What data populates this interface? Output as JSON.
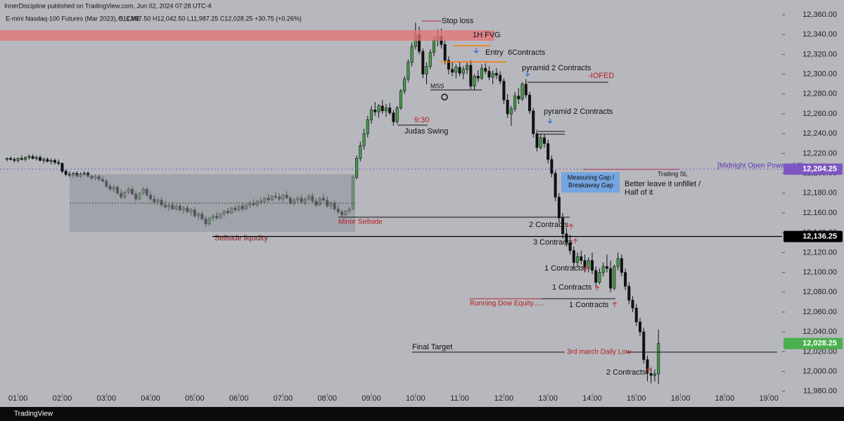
{
  "chart_data": {
    "type": "candlestick",
    "header": {
      "publisher": "InnerDiscipline published on TradingView.com, Jun 02, 2024 07:28 UTC-4",
      "symbol": "E-mini Nasdaq-100 Futures (Mar 2023), 5, CME",
      "ohlc": "O11,997.50  H12,042.50  L11,987.25  C12,028.25  +30.75 (+0.26%)",
      "brand": "TradingView"
    },
    "up_color": "#43a047",
    "down_color": "#111111",
    "xlim": [
      -1.9,
      210.6
    ],
    "xticks": [
      {
        "value": 3,
        "label": "01:00"
      },
      {
        "value": 15,
        "label": "02:00"
      },
      {
        "value": 27,
        "label": "03:00"
      },
      {
        "value": 39,
        "label": "04:00"
      },
      {
        "value": 51,
        "label": "05:00"
      },
      {
        "value": 63,
        "label": "06:00"
      },
      {
        "value": 75,
        "label": "07:00"
      },
      {
        "value": 87,
        "label": "08:00"
      },
      {
        "value": 99,
        "label": "09:00"
      },
      {
        "value": 111,
        "label": "10:00"
      },
      {
        "value": 123,
        "label": "11:00"
      },
      {
        "value": 135,
        "label": "12:00"
      },
      {
        "value": 147,
        "label": "13:00"
      },
      {
        "value": 159,
        "label": "14:00"
      },
      {
        "value": 171,
        "label": "15:00"
      },
      {
        "value": 183,
        "label": "16:00"
      },
      {
        "value": 195,
        "label": "18:00"
      },
      {
        "value": 207,
        "label": "19:00"
      }
    ],
    "ylim": [
      11977.7,
      12374.9
    ],
    "yticks": [
      {
        "value": 11980,
        "label": "11,980.00"
      },
      {
        "value": 12000,
        "label": "12,000.00"
      },
      {
        "value": 12020,
        "label": "12,020.00"
      },
      {
        "value": 12040,
        "label": "12,040.00"
      },
      {
        "value": 12060,
        "label": "12,060.00"
      },
      {
        "value": 12080,
        "label": "12,080.00"
      },
      {
        "value": 12100,
        "label": "12,100.00"
      },
      {
        "value": 12120,
        "label": "12,120.00"
      },
      {
        "value": 12140,
        "label": "12,140.00"
      },
      {
        "value": 12160,
        "label": "12,160.00"
      },
      {
        "value": 12180,
        "label": "12,180.00"
      },
      {
        "value": 12200,
        "label": "12,200.00"
      },
      {
        "value": 12220,
        "label": "12,220.00"
      },
      {
        "value": 12240,
        "label": "12,240.00"
      },
      {
        "value": 12260,
        "label": "12,260.00"
      },
      {
        "value": 12280,
        "label": "12,280.00"
      },
      {
        "value": 12300,
        "label": "12,300.00"
      },
      {
        "value": 12320,
        "label": "12,320.00"
      },
      {
        "value": 12340,
        "label": "12,340.00"
      },
      {
        "value": 12360,
        "label": "12,360.00"
      }
    ],
    "price_levels": [
      {
        "value": 12204.25,
        "label": "12,204.25",
        "color": "#7e57c2"
      },
      {
        "value": 12136.25,
        "label": "12,136.25",
        "color": "#000000"
      },
      {
        "value": 12028.25,
        "label": "12,028.25",
        "color": "#4caf50"
      }
    ],
    "annotations": [
      "Stop loss",
      "1H FVG",
      "Entry",
      "6Contracts",
      "pyramid  2 Contracts",
      "-IOFED",
      "MSS",
      "9:30",
      "Judas Swing",
      "pyramid  2 Contracts",
      "Trailing SL",
      "[Midnight Open Power of 3]",
      "Measuring Gap /",
      "Breakaway Gap",
      "Better leave it unfillet /",
      "Half of it",
      "Sellside liqudity",
      "Minor Sellside",
      "2 Contracts",
      "3 Contracts",
      "1 Contracts",
      "1 Contracts",
      "Running Dow Equity......",
      "1 Contracts",
      "Final Target",
      "3rd march Daily Low",
      "2 Contracts"
    ],
    "candles": [
      [
        12214,
        12216,
        12212,
        12215
      ],
      [
        12215,
        12217,
        12213,
        12214
      ],
      [
        12214,
        12216,
        12211,
        12213
      ],
      [
        12213,
        12216,
        12211,
        12215
      ],
      [
        12215,
        12218,
        12213,
        12214
      ],
      [
        12214,
        12217,
        12212,
        12216
      ],
      [
        12216,
        12219,
        12214,
        12217
      ],
      [
        12217,
        12219,
        12214,
        12215
      ],
      [
        12215,
        12218,
        12213,
        12216
      ],
      [
        12216,
        12218,
        12212,
        12213
      ],
      [
        12213,
        12216,
        12210,
        12214
      ],
      [
        12214,
        12216,
        12211,
        12212
      ],
      [
        12212,
        12215,
        12209,
        12213
      ],
      [
        12213,
        12215,
        12209,
        12211
      ],
      [
        12211,
        12214,
        12208,
        12210
      ],
      [
        12210,
        12211,
        12200,
        12202
      ],
      [
        12202,
        12204,
        12197,
        12199
      ],
      [
        12199,
        12202,
        12196,
        12198
      ],
      [
        12198,
        12201,
        12195,
        12200
      ],
      [
        12200,
        12202,
        12196,
        12197
      ],
      [
        12197,
        12201,
        12195,
        12199
      ],
      [
        12199,
        12202,
        12197,
        12200
      ],
      [
        12200,
        12202,
        12196,
        12197
      ],
      [
        12197,
        12199,
        12193,
        12195
      ],
      [
        12195,
        12199,
        12193,
        12197
      ],
      [
        12197,
        12199,
        12192,
        12194
      ],
      [
        12194,
        12197,
        12191,
        12192
      ],
      [
        12192,
        12194,
        12185,
        12187
      ],
      [
        12187,
        12190,
        12182,
        12184
      ],
      [
        12184,
        12188,
        12181,
        12186
      ],
      [
        12186,
        12188,
        12178,
        12180
      ],
      [
        12180,
        12184,
        12174,
        12176
      ],
      [
        12176,
        12182,
        12174,
        12181
      ],
      [
        12181,
        12186,
        12179,
        12184
      ],
      [
        12184,
        12187,
        12178,
        12179
      ],
      [
        12179,
        12182,
        12172,
        12174
      ],
      [
        12174,
        12181,
        12173,
        12180
      ],
      [
        12180,
        12186,
        12178,
        12184
      ],
      [
        12184,
        12186,
        12176,
        12178
      ],
      [
        12178,
        12182,
        12172,
        12174
      ],
      [
        12174,
        12178,
        12169,
        12171
      ],
      [
        12171,
        12175,
        12168,
        12173
      ],
      [
        12173,
        12176,
        12166,
        12168
      ],
      [
        12168,
        12172,
        12164,
        12166
      ],
      [
        12166,
        12170,
        12162,
        12168
      ],
      [
        12168,
        12171,
        12163,
        12164
      ],
      [
        12164,
        12169,
        12162,
        12167
      ],
      [
        12167,
        12170,
        12161,
        12163
      ],
      [
        12163,
        12167,
        12159,
        12165
      ],
      [
        12165,
        12168,
        12160,
        12161
      ],
      [
        12161,
        12165,
        12157,
        12163
      ],
      [
        12163,
        12166,
        12155,
        12157
      ],
      [
        12157,
        12161,
        12153,
        12159
      ],
      [
        12159,
        12162,
        12152,
        12154
      ],
      [
        12154,
        12157,
        12146,
        12149
      ],
      [
        12149,
        12156,
        12147,
        12155
      ],
      [
        12155,
        12159,
        12152,
        12157
      ],
      [
        12157,
        12161,
        12153,
        12155
      ],
      [
        12155,
        12160,
        12154,
        12159
      ],
      [
        12159,
        12163,
        12156,
        12162
      ],
      [
        12162,
        12165,
        12158,
        12160
      ],
      [
        12160,
        12166,
        12159,
        12165
      ],
      [
        12165,
        12168,
        12161,
        12163
      ],
      [
        12163,
        12168,
        12161,
        12167
      ],
      [
        12167,
        12170,
        12162,
        12164
      ],
      [
        12164,
        12169,
        12163,
        12168
      ],
      [
        12168,
        12172,
        12165,
        12170
      ],
      [
        12170,
        12174,
        12167,
        12168
      ],
      [
        12168,
        12173,
        12166,
        12172
      ],
      [
        12172,
        12176,
        12169,
        12171
      ],
      [
        12171,
        12176,
        12170,
        12175
      ],
      [
        12175,
        12179,
        12171,
        12173
      ],
      [
        12173,
        12178,
        12172,
        12177
      ],
      [
        12177,
        12181,
        12174,
        12176
      ],
      [
        12176,
        12180,
        12172,
        12174
      ],
      [
        12174,
        12179,
        12171,
        12178
      ],
      [
        12178,
        12182,
        12174,
        12175
      ],
      [
        12175,
        12177,
        12168,
        12170
      ],
      [
        12170,
        12175,
        12167,
        12173
      ],
      [
        12173,
        12177,
        12170,
        12175
      ],
      [
        12175,
        12178,
        12169,
        12171
      ],
      [
        12171,
        12176,
        12168,
        12174
      ],
      [
        12174,
        12179,
        12172,
        12177
      ],
      [
        12177,
        12180,
        12170,
        12172
      ],
      [
        12172,
        12175,
        12166,
        12168
      ],
      [
        12168,
        12176,
        12167,
        12175
      ],
      [
        12175,
        12179,
        12171,
        12173
      ],
      [
        12173,
        12177,
        12165,
        12167
      ],
      [
        12167,
        12172,
        12164,
        12170
      ],
      [
        12170,
        12173,
        12162,
        12164
      ],
      [
        12164,
        12168,
        12159,
        12161
      ],
      [
        12161,
        12164,
        12156,
        12158
      ],
      [
        12158,
        12163,
        12157,
        12162
      ],
      [
        12162,
        12166,
        12160,
        12164
      ],
      [
        12164,
        12198,
        12163,
        12196
      ],
      [
        12196,
        12218,
        12194,
        12215
      ],
      [
        12215,
        12232,
        12212,
        12228
      ],
      [
        12228,
        12245,
        12224,
        12240
      ],
      [
        12240,
        12258,
        12236,
        12254
      ],
      [
        12254,
        12268,
        12250,
        12264
      ],
      [
        12264,
        12272,
        12258,
        12262
      ],
      [
        12262,
        12270,
        12256,
        12268
      ],
      [
        12268,
        12274,
        12260,
        12263
      ],
      [
        12263,
        12270,
        12257,
        12266
      ],
      [
        12266,
        12271,
        12259,
        12261
      ],
      [
        12261,
        12264,
        12248,
        12252
      ],
      [
        12252,
        12268,
        12250,
        12266
      ],
      [
        12266,
        12285,
        12264,
        12283
      ],
      [
        12283,
        12298,
        12280,
        12295
      ],
      [
        12295,
        12315,
        12292,
        12312
      ],
      [
        12312,
        12332,
        12308,
        12328
      ],
      [
        12328,
        12352,
        12325,
        12340
      ],
      [
        12340,
        12348,
        12320,
        12323
      ],
      [
        12323,
        12326,
        12296,
        12300
      ],
      [
        12300,
        12312,
        12290,
        12308
      ],
      [
        12308,
        12325,
        12305,
        12322
      ],
      [
        12322,
        12338,
        12318,
        12334
      ],
      [
        12334,
        12345,
        12328,
        12338
      ],
      [
        12338,
        12346,
        12326,
        12330
      ],
      [
        12330,
        12334,
        12310,
        12314
      ],
      [
        12314,
        12318,
        12300,
        12305
      ],
      [
        12305,
        12312,
        12298,
        12302
      ],
      [
        12302,
        12310,
        12296,
        12307
      ],
      [
        12307,
        12312,
        12298,
        12301
      ],
      [
        12301,
        12308,
        12295,
        12305
      ],
      [
        12305,
        12312,
        12300,
        12309
      ],
      [
        12309,
        12314,
        12285,
        12288
      ],
      [
        12288,
        12300,
        12284,
        12298
      ],
      [
        12298,
        12304,
        12292,
        12296
      ],
      [
        12296,
        12310,
        12294,
        12306
      ],
      [
        12306,
        12311,
        12300,
        12303
      ],
      [
        12303,
        12308,
        12294,
        12297
      ],
      [
        12297,
        12304,
        12290,
        12301
      ],
      [
        12301,
        12306,
        12295,
        12299
      ],
      [
        12299,
        12303,
        12290,
        12293
      ],
      [
        12293,
        12296,
        12270,
        12274
      ],
      [
        12274,
        12280,
        12256,
        12260
      ],
      [
        12260,
        12268,
        12248,
        12265
      ],
      [
        12265,
        12282,
        12262,
        12278
      ],
      [
        12278,
        12286,
        12270,
        12275
      ],
      [
        12275,
        12292,
        12273,
        12290
      ],
      [
        12290,
        12295,
        12276,
        12279
      ],
      [
        12279,
        12282,
        12260,
        12263
      ],
      [
        12263,
        12266,
        12236,
        12240
      ],
      [
        12240,
        12244,
        12222,
        12226
      ],
      [
        12226,
        12240,
        12224,
        12236
      ],
      [
        12236,
        12240,
        12226,
        12230
      ],
      [
        12230,
        12234,
        12210,
        12214
      ],
      [
        12214,
        12218,
        12196,
        12200
      ],
      [
        12200,
        12203,
        12172,
        12176
      ],
      [
        12176,
        12180,
        12150,
        12155
      ],
      [
        12155,
        12160,
        12134,
        12139
      ],
      [
        12139,
        12145,
        12126,
        12130
      ],
      [
        12130,
        12138,
        12118,
        12122
      ],
      [
        12122,
        12126,
        12104,
        12110
      ],
      [
        12110,
        12120,
        12106,
        12116
      ],
      [
        12116,
        12122,
        12108,
        12112
      ],
      [
        12112,
        12118,
        12100,
        12104
      ],
      [
        12104,
        12115,
        12100,
        12112
      ],
      [
        12112,
        12120,
        12098,
        12102
      ],
      [
        12102,
        12106,
        12086,
        12090
      ],
      [
        12090,
        12104,
        12088,
        12100
      ],
      [
        12100,
        12110,
        12096,
        12106
      ],
      [
        12106,
        12118,
        12100,
        12104
      ],
      [
        12104,
        12112,
        12080,
        12084
      ],
      [
        12084,
        12108,
        12082,
        12106
      ],
      [
        12106,
        12120,
        12102,
        12114
      ],
      [
        12114,
        12118,
        12096,
        12100
      ],
      [
        12100,
        12104,
        12082,
        12086
      ],
      [
        12086,
        12090,
        12068,
        12072
      ],
      [
        12072,
        12076,
        12060,
        12064
      ],
      [
        12064,
        12068,
        12046,
        12050
      ],
      [
        12050,
        12054,
        12036,
        12040
      ],
      [
        12040,
        12044,
        12008,
        12012
      ],
      [
        12012,
        12016,
        11990,
        11998
      ],
      [
        11998,
        12004,
        11988,
        11996
      ],
      [
        11996,
        12002,
        11990,
        11997.5
      ],
      [
        11997.5,
        12042.5,
        11987.25,
        12028.25
      ]
    ]
  }
}
